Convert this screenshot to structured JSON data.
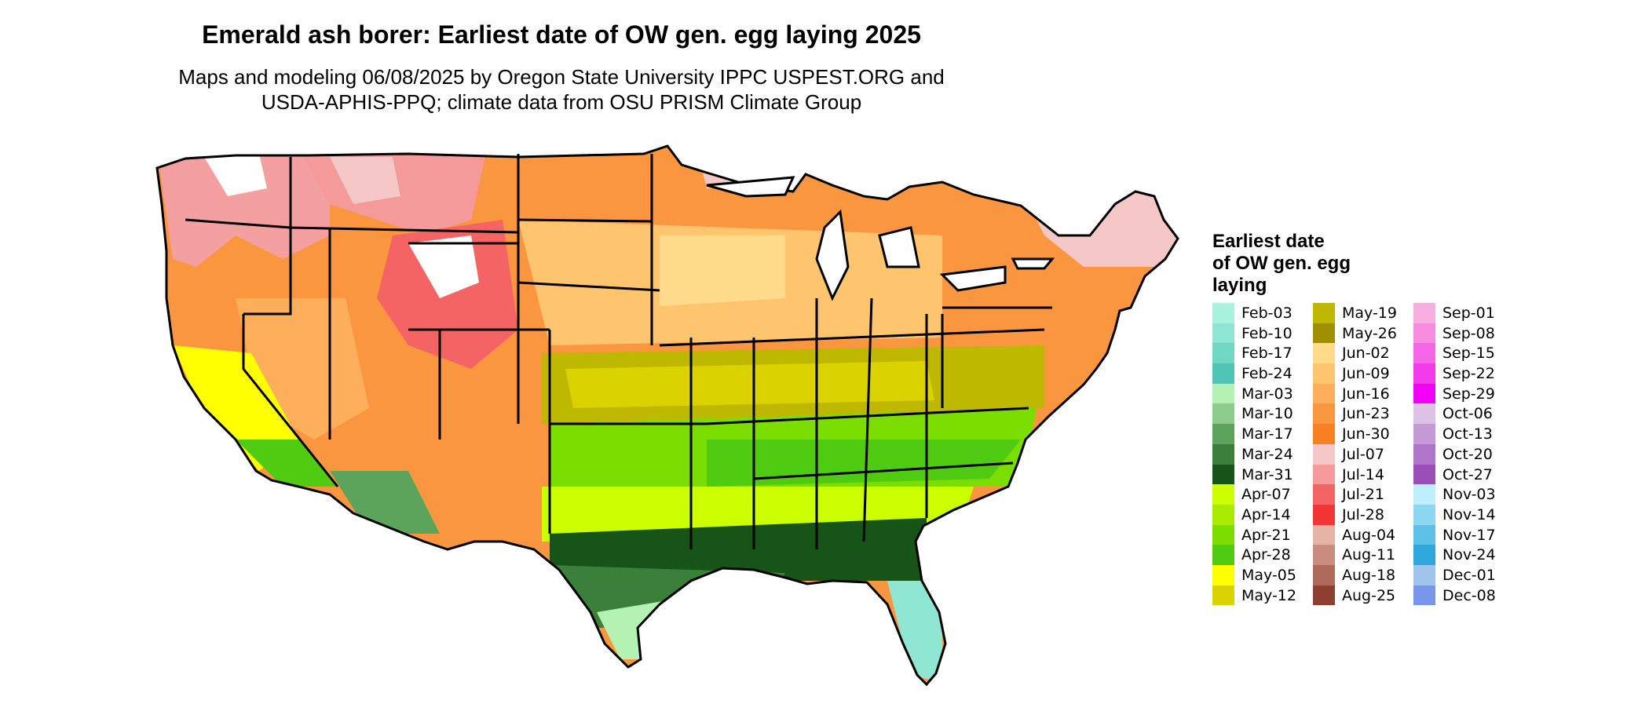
{
  "title": "Emerald ash borer: Earliest date of OW gen. egg laying 2025",
  "subtitle": [
    "Maps and modeling 06/08/2025 by Oregon State University IPPC USPEST.ORG and",
    "USDA-APHIS-PPQ; climate data from OSU PRISM Climate Group"
  ],
  "legend": {
    "title_lines": [
      "Earliest date",
      "of OW gen. egg",
      "laying"
    ],
    "columns": [
      [
        {
          "label": "Feb-03",
          "color": "#a8f2de"
        },
        {
          "label": "Feb-10",
          "color": "#8fe6d2"
        },
        {
          "label": "Feb-17",
          "color": "#72d8c6"
        },
        {
          "label": "Feb-24",
          "color": "#50c4b4"
        },
        {
          "label": "Mar-03",
          "color": "#b4f2b4"
        },
        {
          "label": "Mar-10",
          "color": "#8ccb8c"
        },
        {
          "label": "Mar-17",
          "color": "#5ca45c"
        },
        {
          "label": "Mar-24",
          "color": "#3a7f3a"
        },
        {
          "label": "Mar-31",
          "color": "#175417"
        },
        {
          "label": "Apr-07",
          "color": "#ccff00"
        },
        {
          "label": "Apr-14",
          "color": "#a9ec00"
        },
        {
          "label": "Apr-21",
          "color": "#7bdd00"
        },
        {
          "label": "Apr-28",
          "color": "#4fcc12"
        },
        {
          "label": "May-05",
          "color": "#ffff00"
        },
        {
          "label": "May-12",
          "color": "#dbd300"
        }
      ],
      [
        {
          "label": "May-19",
          "color": "#bfb800"
        },
        {
          "label": "May-26",
          "color": "#9e9000"
        },
        {
          "label": "Jun-02",
          "color": "#fedb8b"
        },
        {
          "label": "Jun-09",
          "color": "#fec46e"
        },
        {
          "label": "Jun-16",
          "color": "#fdae5a"
        },
        {
          "label": "Jun-23",
          "color": "#fb9640"
        },
        {
          "label": "Jun-30",
          "color": "#f98020"
        },
        {
          "label": "Jul-07",
          "color": "#f5c7c7"
        },
        {
          "label": "Jul-14",
          "color": "#f59a9a"
        },
        {
          "label": "Jul-21",
          "color": "#f46464"
        },
        {
          "label": "Jul-28",
          "color": "#f23434"
        },
        {
          "label": "Aug-04",
          "color": "#e6b4a6"
        },
        {
          "label": "Aug-11",
          "color": "#cb8c80"
        },
        {
          "label": "Aug-18",
          "color": "#b06a5c"
        },
        {
          "label": "Aug-25",
          "color": "#8e4030"
        }
      ],
      [
        {
          "label": "Sep-01",
          "color": "#f8aee0"
        },
        {
          "label": "Sep-08",
          "color": "#f78be0"
        },
        {
          "label": "Sep-15",
          "color": "#f466e6"
        },
        {
          "label": "Sep-22",
          "color": "#f23aec"
        },
        {
          "label": "Sep-29",
          "color": "#f000f4"
        },
        {
          "label": "Oct-06",
          "color": "#dcc2e6"
        },
        {
          "label": "Oct-13",
          "color": "#c69ad6"
        },
        {
          "label": "Oct-20",
          "color": "#b074c8"
        },
        {
          "label": "Oct-27",
          "color": "#9850b8"
        },
        {
          "label": "Nov-03",
          "color": "#bfeefe"
        },
        {
          "label": "Nov-14",
          "color": "#8ed7f1"
        },
        {
          "label": "Nov-17",
          "color": "#5ec2e8"
        },
        {
          "label": "Nov-24",
          "color": "#2ea8dc"
        },
        {
          "label": "Dec-01",
          "color": "#a0c4ec"
        },
        {
          "label": "Dec-08",
          "color": "#7a96ec"
        }
      ]
    ]
  },
  "map_colors": {
    "outline": "#000000",
    "water_lakes": "#ffffff"
  }
}
